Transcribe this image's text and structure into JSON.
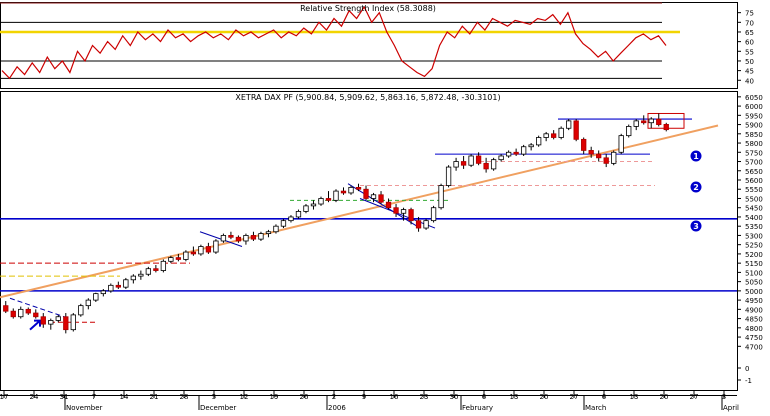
{
  "chart_data": [
    {
      "type": "line",
      "title": "Relative Strength Index (58.3088)",
      "ylim": [
        36,
        80
      ],
      "y_ticks": [
        40,
        45,
        50,
        55,
        60,
        65,
        70,
        75
      ],
      "reference_lines": [
        {
          "value": 80,
          "color": "#8b1a1a"
        },
        {
          "value": 70,
          "color": "#000000"
        },
        {
          "value": 65,
          "color": "#f2d400"
        },
        {
          "value": 50,
          "color": "#000000"
        },
        {
          "value": 41,
          "color": "#000000"
        }
      ],
      "series": [
        {
          "color": "#cc0000",
          "values": [
            45,
            41,
            47,
            43,
            49,
            44,
            52,
            46,
            50,
            44,
            55,
            50,
            58,
            54,
            60,
            56,
            63,
            58,
            65,
            61,
            64,
            60,
            66,
            62,
            64,
            60,
            63,
            65,
            62,
            64,
            61,
            66,
            63,
            65,
            62,
            64,
            66,
            62,
            65,
            63,
            67,
            64,
            70,
            66,
            72,
            68,
            76,
            72,
            78,
            70,
            75,
            65,
            58,
            50,
            47,
            44,
            42,
            46,
            58,
            65,
            62,
            68,
            64,
            70,
            66,
            72,
            70,
            68,
            71,
            70,
            69,
            72,
            71,
            74,
            69,
            75,
            64,
            59,
            56,
            52,
            55,
            50,
            54,
            58,
            62,
            64,
            61,
            63,
            58
          ]
        }
      ]
    },
    {
      "type": "candlestick",
      "title": "XETRA DAX PF (5,900.84, 5,909.62, 5,863.16, 5,872.48, -30.3101)",
      "ylim": [
        4680,
        6060
      ],
      "y_ticks": [
        4700,
        4750,
        4800,
        4850,
        4900,
        4950,
        5000,
        5050,
        5100,
        5150,
        5200,
        5250,
        5300,
        5350,
        5400,
        5450,
        5500,
        5550,
        5600,
        5650,
        5700,
        5750,
        5800,
        5850,
        5900,
        5950,
        6000,
        6050
      ],
      "x_tick_labels": [
        "17",
        "24",
        "31",
        "7",
        "14",
        "21",
        "28",
        "5",
        "12",
        "19",
        "26",
        "2",
        "9",
        "16",
        "23",
        "30",
        "6",
        "13",
        "20",
        "27",
        "6",
        "13",
        "20",
        "27",
        "3"
      ],
      "extra_axis_ticks": [
        "0",
        "-1"
      ],
      "month_labels": [
        "November",
        "December",
        "2006",
        "February",
        "March",
        "April"
      ],
      "markers": [
        "1",
        "2",
        "3"
      ],
      "candles": [
        [
          4920,
          4945,
          4880,
          4890
        ],
        [
          4890,
          4905,
          4850,
          4860
        ],
        [
          4860,
          4915,
          4850,
          4900
        ],
        [
          4900,
          4910,
          4870,
          4880
        ],
        [
          4880,
          4900,
          4850,
          4860
        ],
        [
          4860,
          4880,
          4800,
          4820
        ],
        [
          4820,
          4850,
          4790,
          4840
        ],
        [
          4840,
          4870,
          4830,
          4860
        ],
        [
          4860,
          4880,
          4770,
          4790
        ],
        [
          4790,
          4880,
          4780,
          4870
        ],
        [
          4870,
          4930,
          4860,
          4920
        ],
        [
          4920,
          4960,
          4900,
          4950
        ],
        [
          4950,
          4990,
          4940,
          4985
        ],
        [
          4985,
          5010,
          4970,
          5000
        ],
        [
          5000,
          5040,
          4990,
          5030
        ],
        [
          5030,
          5050,
          5010,
          5020
        ],
        [
          5020,
          5070,
          5010,
          5060
        ],
        [
          5060,
          5090,
          5040,
          5080
        ],
        [
          5080,
          5110,
          5060,
          5090
        ],
        [
          5090,
          5130,
          5080,
          5120
        ],
        [
          5120,
          5140,
          5100,
          5110
        ],
        [
          5110,
          5170,
          5100,
          5160
        ],
        [
          5160,
          5190,
          5150,
          5180
        ],
        [
          5180,
          5200,
          5160,
          5170
        ],
        [
          5170,
          5220,
          5160,
          5210
        ],
        [
          5210,
          5240,
          5190,
          5200
        ],
        [
          5200,
          5250,
          5190,
          5240
        ],
        [
          5240,
          5260,
          5200,
          5210
        ],
        [
          5210,
          5280,
          5200,
          5270
        ],
        [
          5270,
          5310,
          5260,
          5300
        ],
        [
          5300,
          5320,
          5280,
          5290
        ],
        [
          5290,
          5300,
          5260,
          5270
        ],
        [
          5270,
          5310,
          5250,
          5300
        ],
        [
          5300,
          5320,
          5270,
          5280
        ],
        [
          5280,
          5320,
          5270,
          5310
        ],
        [
          5310,
          5330,
          5290,
          5320
        ],
        [
          5320,
          5360,
          5310,
          5350
        ],
        [
          5350,
          5390,
          5340,
          5380
        ],
        [
          5380,
          5410,
          5370,
          5400
        ],
        [
          5400,
          5440,
          5390,
          5430
        ],
        [
          5430,
          5470,
          5420,
          5460
        ],
        [
          5460,
          5490,
          5440,
          5470
        ],
        [
          5470,
          5510,
          5460,
          5500
        ],
        [
          5500,
          5540,
          5480,
          5490
        ],
        [
          5490,
          5550,
          5480,
          5540
        ],
        [
          5540,
          5560,
          5520,
          5530
        ],
        [
          5530,
          5570,
          5520,
          5560
        ],
        [
          5560,
          5580,
          5540,
          5550
        ],
        [
          5550,
          5570,
          5490,
          5500
        ],
        [
          5500,
          5530,
          5480,
          5520
        ],
        [
          5520,
          5540,
          5470,
          5480
        ],
        [
          5480,
          5500,
          5440,
          5450
        ],
        [
          5450,
          5470,
          5400,
          5420
        ],
        [
          5420,
          5450,
          5380,
          5440
        ],
        [
          5440,
          5450,
          5360,
          5380
        ],
        [
          5380,
          5400,
          5320,
          5340
        ],
        [
          5340,
          5390,
          5330,
          5380
        ],
        [
          5380,
          5460,
          5370,
          5450
        ],
        [
          5450,
          5580,
          5440,
          5570
        ],
        [
          5570,
          5680,
          5560,
          5670
        ],
        [
          5670,
          5720,
          5650,
          5700
        ],
        [
          5700,
          5730,
          5660,
          5680
        ],
        [
          5680,
          5740,
          5670,
          5730
        ],
        [
          5730,
          5750,
          5680,
          5690
        ],
        [
          5690,
          5720,
          5640,
          5660
        ],
        [
          5660,
          5720,
          5650,
          5710
        ],
        [
          5710,
          5740,
          5700,
          5730
        ],
        [
          5730,
          5760,
          5720,
          5750
        ],
        [
          5750,
          5770,
          5730,
          5740
        ],
        [
          5740,
          5790,
          5730,
          5780
        ],
        [
          5780,
          5800,
          5760,
          5790
        ],
        [
          5790,
          5840,
          5780,
          5830
        ],
        [
          5830,
          5860,
          5810,
          5850
        ],
        [
          5850,
          5870,
          5820,
          5830
        ],
        [
          5830,
          5890,
          5820,
          5880
        ],
        [
          5880,
          5930,
          5870,
          5920
        ],
        [
          5920,
          5930,
          5810,
          5820
        ],
        [
          5820,
          5830,
          5740,
          5760
        ],
        [
          5760,
          5780,
          5720,
          5740
        ],
        [
          5740,
          5760,
          5700,
          5720
        ],
        [
          5720,
          5740,
          5670,
          5690
        ],
        [
          5690,
          5760,
          5680,
          5750
        ],
        [
          5750,
          5850,
          5740,
          5840
        ],
        [
          5840,
          5900,
          5830,
          5890
        ],
        [
          5890,
          5930,
          5870,
          5920
        ],
        [
          5920,
          5950,
          5900,
          5910
        ],
        [
          5910,
          5940,
          5880,
          5930
        ],
        [
          5930,
          5960,
          5890,
          5900
        ],
        [
          5900.84,
          5909.62,
          5863.16,
          5872.48
        ]
      ]
    }
  ]
}
